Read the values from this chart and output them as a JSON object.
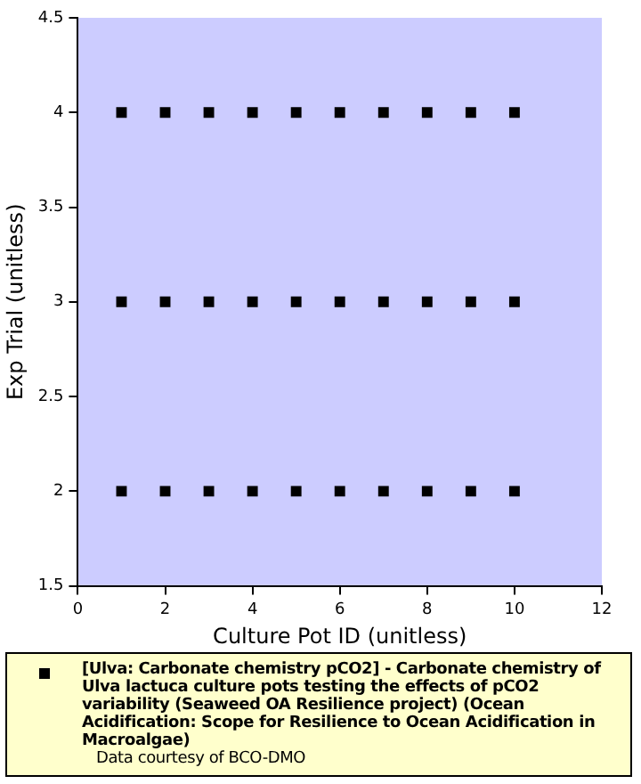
{
  "chart_data": {
    "type": "scatter",
    "xlabel": "Culture Pot ID (unitless)",
    "ylabel": "Exp Trial (unitless)",
    "xlim": [
      0,
      12
    ],
    "xticks": [
      0,
      2,
      4,
      6,
      8,
      10,
      12
    ],
    "ylim": [
      1.5,
      4.5
    ],
    "yticks": [
      1.5,
      2,
      2.5,
      3,
      3.5,
      4,
      4.5
    ],
    "grid": false,
    "legend": "bottom",
    "marker": "square",
    "series": [
      {
        "name": "[Ulva: Carbonate chemistry pCO2] - Carbonate chemistry of Ulva lactuca culture pots testing the effects of pCO2 variability (Seaweed OA Resilience project) (Ocean Acidification: Scope for Resilience to Ocean Acidification in Macroalgae)",
        "color": "#000000",
        "x": [
          1,
          2,
          3,
          4,
          5,
          6,
          7,
          8,
          9,
          10,
          1,
          2,
          3,
          4,
          5,
          6,
          7,
          8,
          9,
          10,
          1,
          2,
          3,
          4,
          5,
          6,
          7,
          8,
          9,
          10
        ],
        "values": [
          4,
          4,
          4,
          4,
          4,
          4,
          4,
          4,
          4,
          4,
          3,
          3,
          3,
          3,
          3,
          3,
          3,
          3,
          3,
          3,
          2,
          2,
          2,
          2,
          2,
          2,
          2,
          2,
          2,
          2
        ]
      }
    ],
    "annotations": [
      "Data courtesy of BCO-DMO"
    ]
  }
}
